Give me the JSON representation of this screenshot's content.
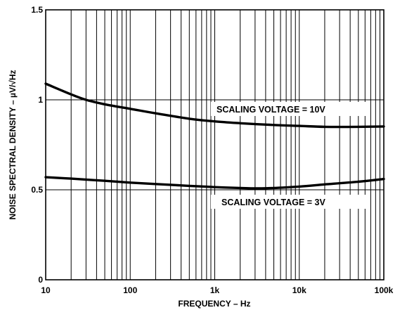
{
  "chart_data": {
    "type": "line",
    "title": "",
    "xlabel": "FREQUENCY – Hz",
    "ylabel": "NOISE SPECTRAL DENSITY – µV/√Hz",
    "xscale": "log",
    "xlim": [
      10,
      100000
    ],
    "ylim": [
      0,
      1.5
    ],
    "grid": true,
    "x_tick_labels": [
      "10",
      "100",
      "1k",
      "10k",
      "100k"
    ],
    "y_tick_labels": [
      "0",
      "0.5",
      "1",
      "1.5"
    ],
    "series": [
      {
        "name": "SCALING VOLTAGE = 10V",
        "x": [
          10,
          20,
          30,
          50,
          100,
          200,
          500,
          1000,
          2000,
          5000,
          10000,
          20000,
          50000,
          100000
        ],
        "y": [
          1.09,
          1.03,
          1.0,
          0.975,
          0.95,
          0.925,
          0.895,
          0.88,
          0.87,
          0.86,
          0.855,
          0.85,
          0.85,
          0.852
        ]
      },
      {
        "name": "SCALING VOLTAGE = 3V",
        "x": [
          10,
          20,
          50,
          100,
          200,
          500,
          1000,
          2000,
          3000,
          5000,
          10000,
          20000,
          50000,
          100000
        ],
        "y": [
          0.57,
          0.562,
          0.55,
          0.54,
          0.532,
          0.522,
          0.515,
          0.51,
          0.508,
          0.51,
          0.518,
          0.53,
          0.545,
          0.56
        ]
      }
    ],
    "annotations": [
      "SCALING VOLTAGE = 10V",
      "SCALING VOLTAGE = 3V"
    ]
  }
}
